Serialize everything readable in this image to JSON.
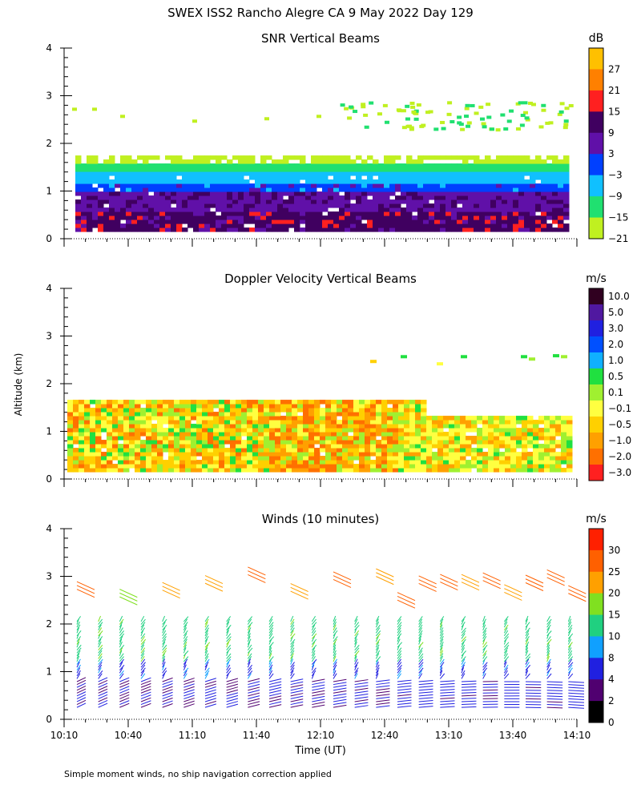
{
  "title": "SWEX ISS2 Rancho Alegre CA   9 May 2022 Day 129",
  "ylabel": "Altitude (km)",
  "xlabel": "Time (UT)",
  "footnote": "Simple moment winds, no ship navigation correction applied",
  "chart_data": [
    {
      "type": "heatmap",
      "title": "SNR Vertical Beams",
      "x_range": [
        "10:10",
        "14:10"
      ],
      "x_ticks": [
        "10:10",
        "10:40",
        "11:10",
        "11:40",
        "12:10",
        "12:40",
        "13:10",
        "13:40",
        "14:10"
      ],
      "ylim": [
        0,
        4
      ],
      "y_ticks": [
        "0",
        "1",
        "2",
        "3",
        "4"
      ],
      "colorbar": {
        "unit": "dB",
        "labels": [
          "27",
          "21",
          "15",
          "9",
          "3",
          "−3",
          "−9",
          "−15",
          "−21"
        ],
        "colors": [
          "#ffc000",
          "#ff8000",
          "#ff2020",
          "#400060",
          "#6010a8",
          "#0040ff",
          "#10c0ff",
          "#20e070",
          "#c0f020"
        ]
      },
      "layers_km": [
        {
          "bottom": 0.15,
          "top": 0.55,
          "dB": 9
        },
        {
          "bottom": 0.55,
          "top": 0.95,
          "dB": 5
        },
        {
          "bottom": 0.95,
          "top": 1.15,
          "dB": -3
        },
        {
          "bottom": 1.15,
          "top": 1.35,
          "dB": -9
        },
        {
          "bottom": 1.35,
          "top": 1.55,
          "dB": -15
        },
        {
          "bottom": 1.55,
          "top": 1.65,
          "dB": -21
        }
      ]
    },
    {
      "type": "heatmap",
      "title": "Doppler Velocity Vertical Beams",
      "x_range": [
        "10:10",
        "14:10"
      ],
      "x_ticks": [
        "10:10",
        "10:40",
        "11:10",
        "11:40",
        "12:10",
        "12:40",
        "13:10",
        "13:40",
        "14:10"
      ],
      "ylim": [
        0,
        4
      ],
      "y_ticks": [
        "0",
        "1",
        "2",
        "3",
        "4"
      ],
      "colorbar": {
        "unit": "m/s",
        "labels": [
          "10.0",
          "5.0",
          "3.0",
          "2.0",
          "1.0",
          "0.5",
          "0.1",
          "−0.1",
          "−0.5",
          "−1.0",
          "−2.0",
          "−3.0"
        ],
        "colors": [
          "#300020",
          "#5018a0",
          "#2020e0",
          "#0050ff",
          "#10b0ff",
          "#20e040",
          "#a0f030",
          "#ffff40",
          "#ffd000",
          "#ffa000",
          "#ff7000",
          "#ff2020"
        ]
      }
    },
    {
      "type": "wind_barbs",
      "title": "Winds (10 minutes)",
      "x_range": [
        "10:10",
        "14:10"
      ],
      "x_ticks": [
        "10:10",
        "10:40",
        "11:10",
        "11:40",
        "12:10",
        "12:40",
        "13:10",
        "13:40",
        "14:10"
      ],
      "ylim": [
        0,
        4
      ],
      "y_ticks": [
        "0",
        "1",
        "2",
        "3",
        "4"
      ],
      "colorbar": {
        "unit": "m/s",
        "labels": [
          "30",
          "25",
          "20",
          "15",
          "10",
          "8",
          "4",
          "2",
          "0"
        ],
        "colors": [
          "#ff2000",
          "#ff6000",
          "#ffa000",
          "#80e020",
          "#20d080",
          "#10a0ff",
          "#2020e0",
          "#500070",
          "#000000"
        ]
      },
      "profile_times": [
        "10:16",
        "10:26",
        "10:36",
        "10:46",
        "10:56",
        "11:06",
        "11:16",
        "11:26",
        "11:36",
        "11:46",
        "11:56",
        "12:06",
        "12:16",
        "12:26",
        "12:36",
        "12:46",
        "12:56",
        "13:06",
        "13:16",
        "13:26",
        "13:36",
        "13:46",
        "13:56",
        "14:06"
      ]
    }
  ]
}
